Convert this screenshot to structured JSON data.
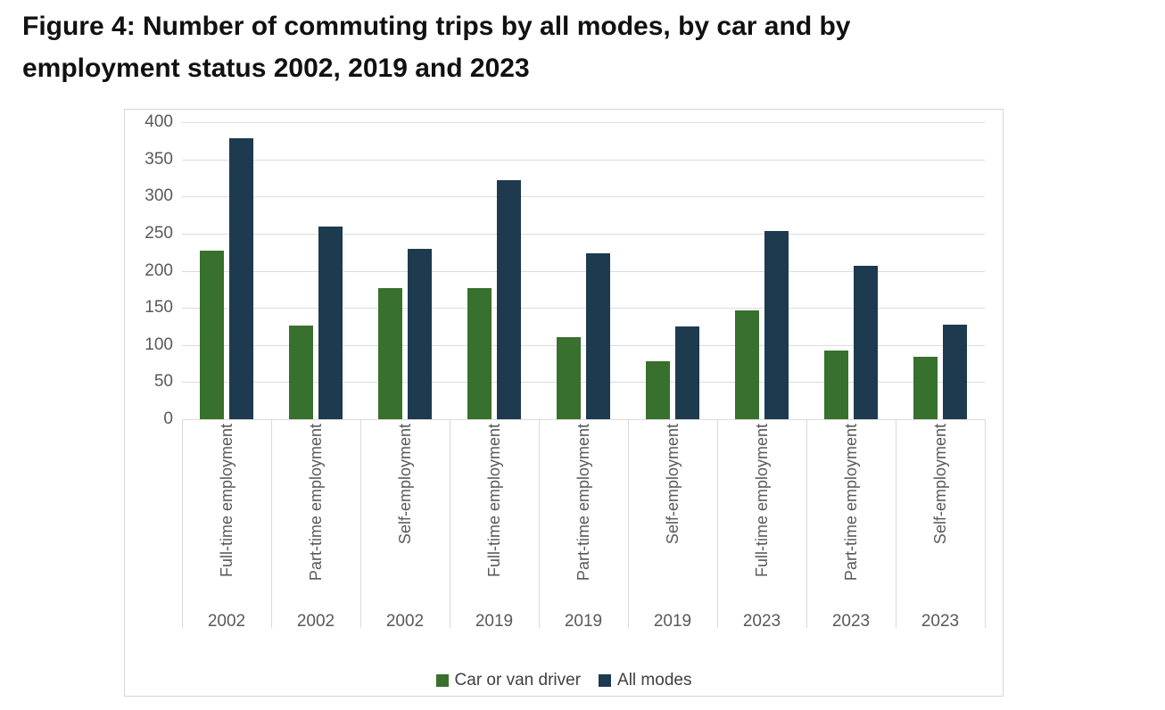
{
  "title": {
    "line1": "Figure 4: Number of commuting trips by all modes, by car and by",
    "line2": "employment status 2002, 2019 and 2023"
  },
  "colors": {
    "car_or_van_driver": "#38702d",
    "all_modes": "#1d3a4f",
    "gridline": "#dcdcdc",
    "axis_text": "#595959",
    "container_border": "#d6d6d6",
    "title_text": "#111111",
    "legend_text": "#404040"
  },
  "chart_data": {
    "type": "bar",
    "title": "Figure 4: Number of commuting trips by all modes, by car and by employment status 2002, 2019 and 2023",
    "categories": [
      "Full-time employment",
      "Part-time employment",
      "Self-employment",
      "Full-time employment",
      "Part-time employment",
      "Self-employment",
      "Full-time employment",
      "Part-time employment",
      "Self-employment"
    ],
    "years": [
      "2002",
      "2002",
      "2002",
      "2019",
      "2019",
      "2019",
      "2023",
      "2023",
      "2023"
    ],
    "series": [
      {
        "name": "Car or van driver",
        "color": "#38702d",
        "values": [
          227,
          126,
          176,
          176,
          110,
          78,
          146,
          93,
          84
        ]
      },
      {
        "name": "All modes",
        "color": "#1d3a4f",
        "values": [
          378,
          260,
          230,
          322,
          224,
          125,
          253,
          207,
          127
        ]
      }
    ],
    "xlabel": "",
    "ylabel": "",
    "ylim": [
      0,
      400
    ],
    "ytick_step": 50,
    "yticks": [
      0,
      50,
      100,
      150,
      200,
      250,
      300,
      350,
      400
    ],
    "grid": true,
    "legend_position": "bottom"
  }
}
